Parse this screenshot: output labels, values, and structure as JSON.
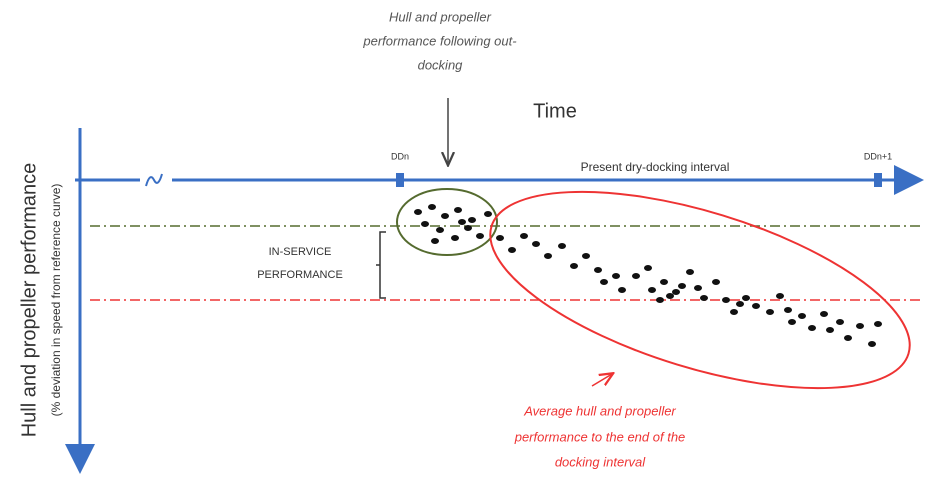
{
  "annotation_top": {
    "lines": [
      "Hull and propeller",
      "performance following out-",
      "docking"
    ]
  },
  "time_label": "Time",
  "ticks": {
    "start": "DDn",
    "end": "DDn+1"
  },
  "interval_label": "Present dry-docking interval",
  "bracket_label": {
    "lines": [
      "IN-SERVICE",
      "PERFORMANCE"
    ]
  },
  "y_axis": {
    "title": "Hull and propeller performance",
    "subtitle": "(% deviation in speed from reference curve)"
  },
  "annotation_bottom": {
    "lines": [
      "Average hull and propeller",
      "performance to the end of the",
      "docking interval"
    ]
  }
}
